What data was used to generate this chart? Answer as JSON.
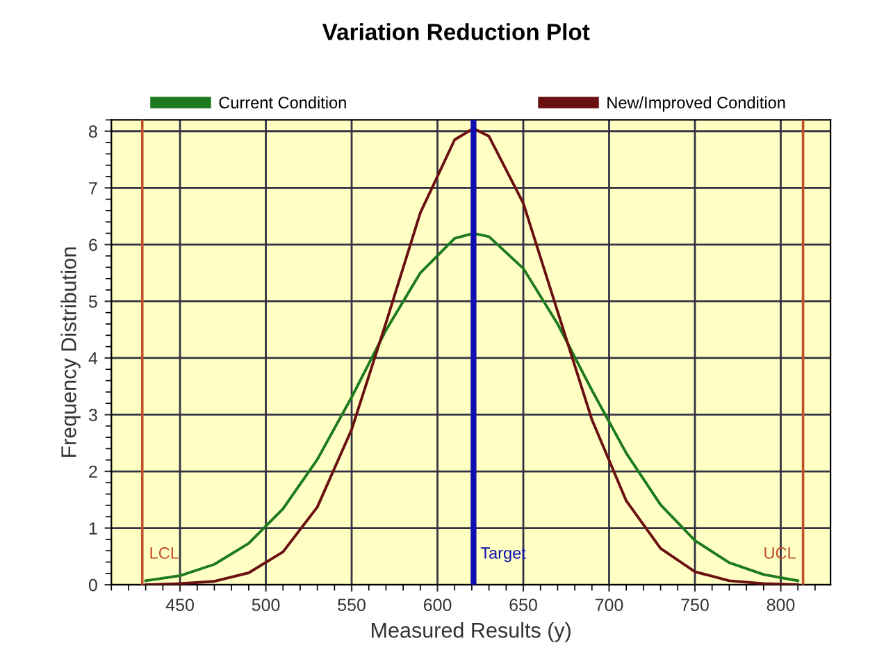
{
  "chart_data": {
    "type": "line",
    "title": "Variation Reduction Plot",
    "xlabel": "Measured Results (y)",
    "ylabel": "Frequency Distribution",
    "x": [
      430,
      450,
      470,
      490,
      510,
      530,
      550,
      570,
      590,
      610,
      621,
      630,
      650,
      670,
      690,
      710,
      730,
      750,
      770,
      790,
      810
    ],
    "series": [
      {
        "name": "Current Condition",
        "color": "#1e7a1e",
        "values": [
          0.07,
          0.16,
          0.36,
          0.73,
          1.34,
          2.21,
          3.31,
          4.49,
          5.5,
          6.11,
          6.2,
          6.14,
          5.58,
          4.6,
          3.43,
          2.32,
          1.41,
          0.78,
          0.39,
          0.18,
          0.07
        ]
      },
      {
        "name": "New/Improved Condition",
        "color": "#6b1010",
        "values": [
          0.0,
          0.02,
          0.06,
          0.21,
          0.58,
          1.37,
          2.74,
          4.62,
          6.56,
          7.85,
          8.05,
          7.91,
          6.73,
          4.82,
          2.91,
          1.48,
          0.64,
          0.23,
          0.07,
          0.02,
          0.0
        ]
      }
    ],
    "xlim": [
      410,
      829
    ],
    "ylim": [
      0,
      8.2
    ],
    "xticks": [
      450,
      500,
      550,
      600,
      650,
      700,
      750,
      800
    ],
    "yticks": [
      0,
      1,
      2,
      3,
      4,
      5,
      6,
      7,
      8
    ],
    "ref_lines": [
      {
        "axis": "x",
        "value": 428,
        "label": "LCL",
        "color": "#c0502a"
      },
      {
        "axis": "x",
        "value": 621,
        "label": "Target",
        "color": "#1010b0"
      },
      {
        "axis": "x",
        "value": 813,
        "label": "UCL",
        "color": "#c0502a"
      }
    ],
    "grid": true,
    "legend": "top",
    "marker": "none",
    "line_style": "solid"
  }
}
